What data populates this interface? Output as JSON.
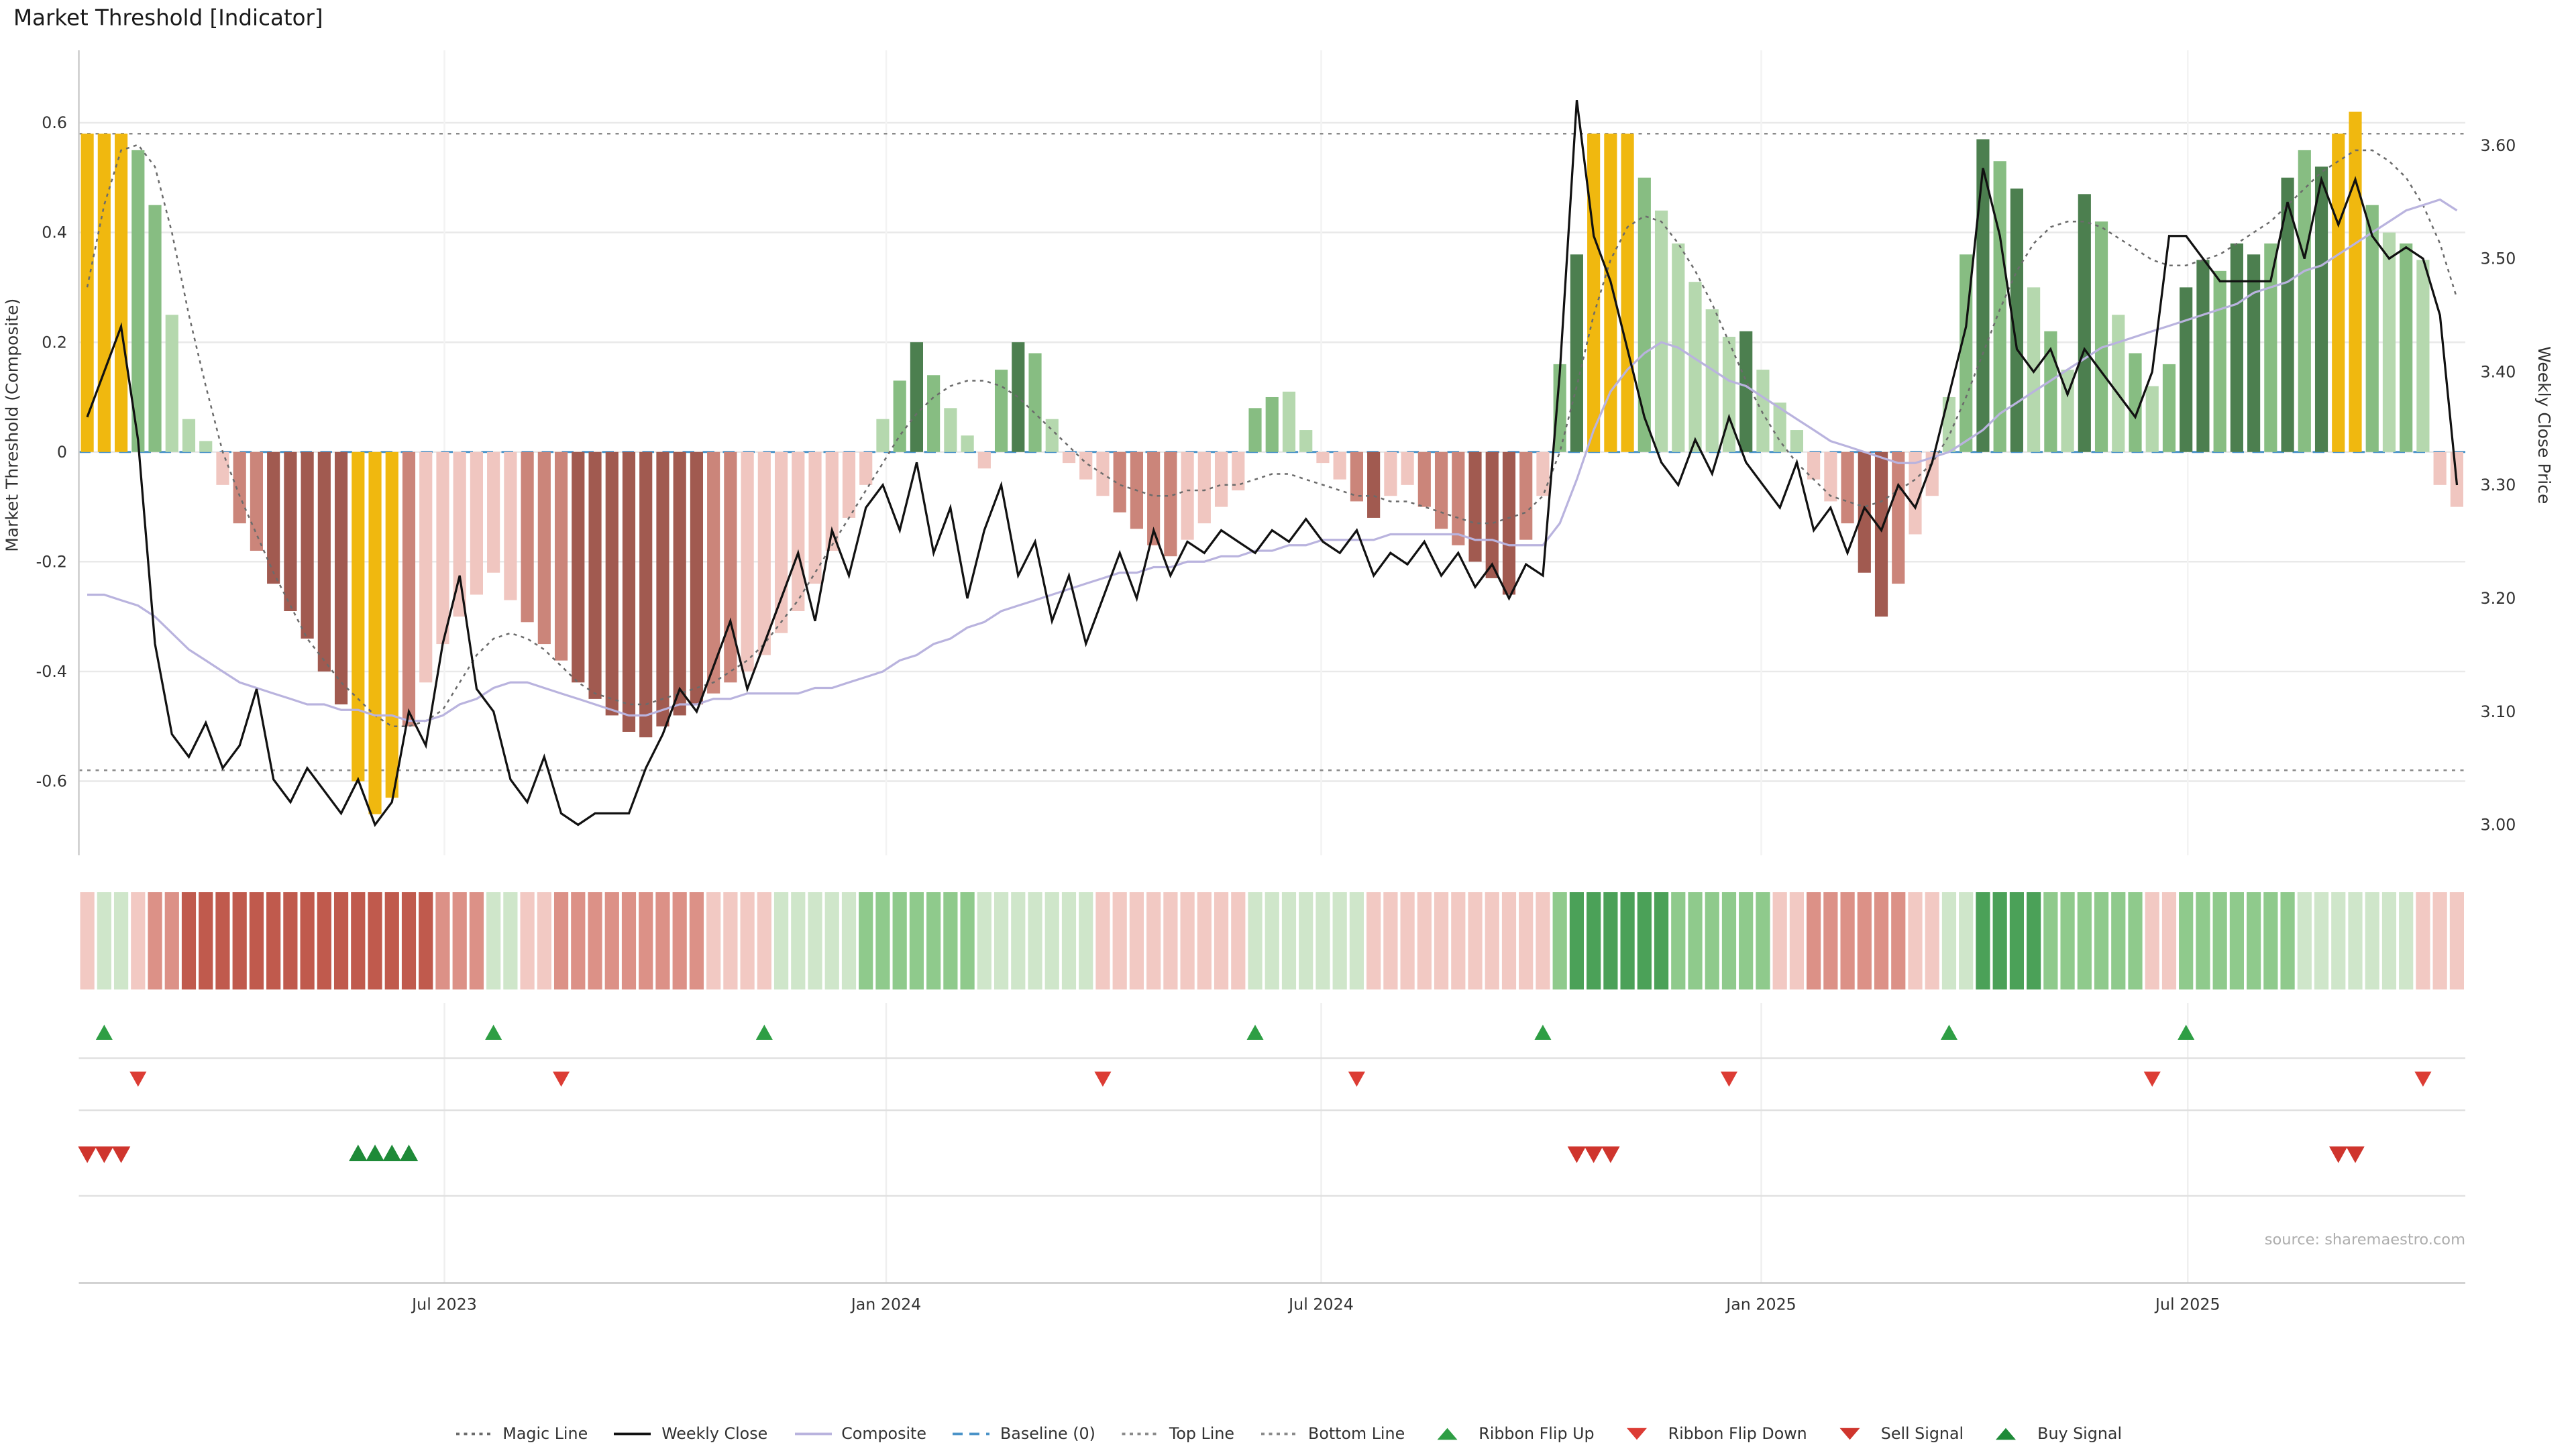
{
  "title": "Market Threshold [Indicator]",
  "source": "source: sharemaestro.com",
  "axes": {
    "left_label": "Market Threshold (Composite)",
    "right_label": "Weekly Close Price",
    "left_ticks": [
      {
        "label": "0.6",
        "value": 0.6
      },
      {
        "label": "0.4",
        "value": 0.4
      },
      {
        "label": "0.2",
        "value": 0.2
      },
      {
        "label": "0",
        "value": 0
      },
      {
        "label": "-0.2",
        "value": -0.2
      },
      {
        "label": "-0.4",
        "value": -0.4
      },
      {
        "label": "-0.6",
        "value": -0.6
      }
    ],
    "right_ticks": [
      {
        "label": "3.60",
        "value": 3.6
      },
      {
        "label": "3.50",
        "value": 3.5
      },
      {
        "label": "3.40",
        "value": 3.4
      },
      {
        "label": "3.30",
        "value": 3.3
      },
      {
        "label": "3.20",
        "value": 3.2
      },
      {
        "label": "3.10",
        "value": 3.1
      },
      {
        "label": "3.00",
        "value": 3.0
      }
    ],
    "x_ticks": [
      {
        "label": "Jul 2023",
        "week": 21.6
      },
      {
        "label": "Jan 2024",
        "week": 47.7
      },
      {
        "label": "Jul 2024",
        "week": 73.4
      },
      {
        "label": "Jan 2025",
        "week": 99.4
      },
      {
        "label": "Jul 2025",
        "week": 124.6
      }
    ]
  },
  "chart_data": {
    "type": "bar+line",
    "frequency": "weekly",
    "left_ylim": [
      -0.735,
      0.732
    ],
    "right_ylim": [
      2.973,
      3.684
    ],
    "baseline": 0,
    "top_line": 0.58,
    "bottom_line": -0.58,
    "grid": true,
    "threshold": {
      "name": "Market Threshold (Composite)",
      "values": [
        0.58,
        0.58,
        0.58,
        0.55,
        0.45,
        0.25,
        0.06,
        0.02,
        -0.06,
        -0.13,
        -0.18,
        -0.24,
        -0.29,
        -0.34,
        -0.4,
        -0.46,
        -0.6,
        -0.66,
        -0.63,
        -0.5,
        -0.42,
        -0.35,
        -0.3,
        -0.26,
        -0.22,
        -0.27,
        -0.31,
        -0.35,
        -0.38,
        -0.42,
        -0.45,
        -0.48,
        -0.51,
        -0.52,
        -0.5,
        -0.48,
        -0.46,
        -0.44,
        -0.42,
        -0.4,
        -0.37,
        -0.33,
        -0.29,
        -0.24,
        -0.18,
        -0.12,
        -0.06,
        0.06,
        0.13,
        0.2,
        0.14,
        0.08,
        0.03,
        -0.03,
        0.15,
        0.2,
        0.18,
        0.06,
        -0.02,
        -0.05,
        -0.08,
        -0.11,
        -0.14,
        -0.17,
        -0.19,
        -0.16,
        -0.13,
        -0.1,
        -0.07,
        0.08,
        0.1,
        0.11,
        0.04,
        -0.02,
        -0.05,
        -0.09,
        -0.12,
        -0.08,
        -0.06,
        -0.1,
        -0.14,
        -0.17,
        -0.2,
        -0.23,
        -0.26,
        -0.16,
        -0.08,
        0.16,
        0.36,
        0.58,
        0.58,
        0.58,
        0.5,
        0.44,
        0.38,
        0.31,
        0.26,
        0.21,
        0.22,
        0.15,
        0.09,
        0.04,
        -0.05,
        -0.09,
        -0.13,
        -0.22,
        -0.3,
        -0.24,
        -0.15,
        -0.08,
        0.1,
        0.36,
        0.57,
        0.53,
        0.48,
        0.3,
        0.22,
        0.15,
        0.47,
        0.42,
        0.25,
        0.18,
        0.12,
        0.16,
        0.3,
        0.35,
        0.33,
        0.38,
        0.36,
        0.38,
        0.5,
        0.55,
        0.52,
        0.58,
        0.62,
        0.45,
        0.4,
        0.38,
        0.35,
        -0.06,
        -0.1
      ],
      "tones": [
        "y",
        "y",
        "y",
        "g2",
        "g2",
        "g1",
        "g1",
        "g1",
        "r1",
        "r2",
        "r2",
        "r3",
        "r3",
        "r3",
        "r3",
        "r3",
        "y",
        "y",
        "y",
        "r2",
        "r1",
        "r1",
        "r1",
        "r1",
        "r1",
        "r1",
        "r2",
        "r2",
        "r2",
        "r3",
        "r3",
        "r3",
        "r3",
        "r3",
        "r3",
        "r3",
        "r3",
        "r2",
        "r2",
        "r1",
        "r1",
        "r1",
        "r1",
        "r1",
        "r1",
        "r1",
        "r1",
        "g1",
        "g2",
        "g3",
        "g2",
        "g1",
        "g1",
        "r1",
        "g2",
        "g3",
        "g2",
        "g1",
        "r1",
        "r1",
        "r1",
        "r2",
        "r2",
        "r2",
        "r2",
        "r1",
        "r1",
        "r1",
        "r1",
        "g2",
        "g2",
        "g1",
        "g1",
        "r1",
        "r1",
        "r2",
        "r3",
        "r1",
        "r1",
        "r2",
        "r2",
        "r2",
        "r3",
        "r3",
        "r3",
        "r2",
        "r1",
        "g2",
        "g3",
        "y",
        "y",
        "y",
        "g2",
        "g1",
        "g1",
        "g1",
        "g1",
        "g1",
        "g3",
        "g1",
        "g1",
        "g1",
        "r1",
        "r1",
        "r2",
        "r3",
        "r3",
        "r2",
        "r1",
        "r1",
        "g1",
        "g2",
        "g3",
        "g2",
        "g3",
        "g1",
        "g2",
        "g1",
        "g3",
        "g2",
        "g1",
        "g2",
        "g1",
        "g2",
        "g3",
        "g3",
        "g2",
        "g3",
        "g3",
        "g2",
        "g3",
        "g2",
        "g3",
        "y",
        "y",
        "g2",
        "g1",
        "g2",
        "g1",
        "r1",
        "r1"
      ]
    },
    "weekly_close": {
      "name": "Weekly Close",
      "values": [
        3.36,
        3.4,
        3.44,
        3.34,
        3.16,
        3.08,
        3.06,
        3.09,
        3.05,
        3.07,
        3.12,
        3.04,
        3.02,
        3.05,
        3.03,
        3.01,
        3.04,
        3.0,
        3.02,
        3.1,
        3.07,
        3.16,
        3.22,
        3.12,
        3.1,
        3.04,
        3.02,
        3.06,
        3.01,
        3.0,
        3.01,
        3.01,
        3.01,
        3.05,
        3.08,
        3.12,
        3.1,
        3.14,
        3.18,
        3.12,
        3.16,
        3.2,
        3.24,
        3.18,
        3.26,
        3.22,
        3.28,
        3.3,
        3.26,
        3.32,
        3.24,
        3.28,
        3.2,
        3.26,
        3.3,
        3.22,
        3.25,
        3.18,
        3.22,
        3.16,
        3.2,
        3.24,
        3.2,
        3.26,
        3.22,
        3.25,
        3.24,
        3.26,
        3.25,
        3.24,
        3.26,
        3.25,
        3.27,
        3.25,
        3.24,
        3.26,
        3.22,
        3.24,
        3.23,
        3.25,
        3.22,
        3.24,
        3.21,
        3.23,
        3.2,
        3.23,
        3.22,
        3.4,
        3.64,
        3.52,
        3.48,
        3.42,
        3.36,
        3.32,
        3.3,
        3.34,
        3.31,
        3.36,
        3.32,
        3.3,
        3.28,
        3.32,
        3.26,
        3.28,
        3.24,
        3.28,
        3.26,
        3.3,
        3.28,
        3.32,
        3.38,
        3.44,
        3.58,
        3.52,
        3.42,
        3.4,
        3.42,
        3.38,
        3.42,
        3.4,
        3.38,
        3.36,
        3.4,
        3.52,
        3.52,
        3.5,
        3.48,
        3.48,
        3.48,
        3.48,
        3.55,
        3.5,
        3.57,
        3.53,
        3.57,
        3.52,
        3.5,
        3.51,
        3.5,
        3.45,
        3.3
      ]
    },
    "composite": {
      "name": "Composite",
      "values": [
        -0.26,
        -0.26,
        -0.27,
        -0.28,
        -0.3,
        -0.33,
        -0.36,
        -0.38,
        -0.4,
        -0.42,
        -0.43,
        -0.44,
        -0.45,
        -0.46,
        -0.46,
        -0.47,
        -0.47,
        -0.48,
        -0.48,
        -0.49,
        -0.49,
        -0.48,
        -0.46,
        -0.45,
        -0.43,
        -0.42,
        -0.42,
        -0.43,
        -0.44,
        -0.45,
        -0.46,
        -0.47,
        -0.48,
        -0.48,
        -0.47,
        -0.46,
        -0.46,
        -0.45,
        -0.45,
        -0.44,
        -0.44,
        -0.44,
        -0.44,
        -0.43,
        -0.43,
        -0.42,
        -0.41,
        -0.4,
        -0.38,
        -0.37,
        -0.35,
        -0.34,
        -0.32,
        -0.31,
        -0.29,
        -0.28,
        -0.27,
        -0.26,
        -0.25,
        -0.24,
        -0.23,
        -0.22,
        -0.22,
        -0.21,
        -0.21,
        -0.2,
        -0.2,
        -0.19,
        -0.19,
        -0.18,
        -0.18,
        -0.17,
        -0.17,
        -0.16,
        -0.16,
        -0.16,
        -0.16,
        -0.15,
        -0.15,
        -0.15,
        -0.15,
        -0.15,
        -0.16,
        -0.16,
        -0.17,
        -0.17,
        -0.17,
        -0.13,
        -0.05,
        0.04,
        0.11,
        0.15,
        0.18,
        0.2,
        0.19,
        0.17,
        0.15,
        0.13,
        0.12,
        0.1,
        0.08,
        0.06,
        0.04,
        0.02,
        0.01,
        0.0,
        -0.01,
        -0.02,
        -0.02,
        -0.01,
        0.0,
        0.02,
        0.04,
        0.07,
        0.09,
        0.11,
        0.13,
        0.15,
        0.17,
        0.19,
        0.2,
        0.21,
        0.22,
        0.23,
        0.24,
        0.25,
        0.26,
        0.27,
        0.29,
        0.3,
        0.31,
        0.33,
        0.34,
        0.36,
        0.38,
        0.4,
        0.42,
        0.44,
        0.45,
        0.46,
        0.44
      ]
    },
    "magic_line": {
      "name": "Magic Line",
      "values": [
        0.3,
        0.45,
        0.55,
        0.56,
        0.52,
        0.4,
        0.25,
        0.12,
        0.0,
        -0.08,
        -0.15,
        -0.22,
        -0.28,
        -0.34,
        -0.38,
        -0.42,
        -0.45,
        -0.48,
        -0.5,
        -0.5,
        -0.49,
        -0.47,
        -0.42,
        -0.37,
        -0.34,
        -0.33,
        -0.34,
        -0.36,
        -0.39,
        -0.42,
        -0.44,
        -0.45,
        -0.46,
        -0.46,
        -0.45,
        -0.44,
        -0.43,
        -0.42,
        -0.4,
        -0.38,
        -0.35,
        -0.31,
        -0.27,
        -0.22,
        -0.17,
        -0.12,
        -0.07,
        -0.02,
        0.03,
        0.07,
        0.1,
        0.12,
        0.13,
        0.13,
        0.12,
        0.1,
        0.07,
        0.04,
        0.01,
        -0.02,
        -0.04,
        -0.06,
        -0.07,
        -0.08,
        -0.08,
        -0.07,
        -0.07,
        -0.06,
        -0.06,
        -0.05,
        -0.04,
        -0.04,
        -0.05,
        -0.06,
        -0.07,
        -0.08,
        -0.08,
        -0.09,
        -0.09,
        -0.1,
        -0.11,
        -0.12,
        -0.13,
        -0.13,
        -0.12,
        -0.11,
        -0.08,
        0.0,
        0.12,
        0.25,
        0.35,
        0.41,
        0.43,
        0.42,
        0.38,
        0.33,
        0.27,
        0.2,
        0.13,
        0.07,
        0.02,
        -0.02,
        -0.05,
        -0.08,
        -0.09,
        -0.1,
        -0.09,
        -0.07,
        -0.05,
        -0.02,
        0.03,
        0.1,
        0.18,
        0.26,
        0.33,
        0.38,
        0.41,
        0.42,
        0.42,
        0.41,
        0.39,
        0.37,
        0.35,
        0.34,
        0.34,
        0.35,
        0.36,
        0.38,
        0.4,
        0.42,
        0.45,
        0.48,
        0.51,
        0.53,
        0.55,
        0.55,
        0.53,
        0.5,
        0.45,
        0.38,
        0.28
      ]
    },
    "ribbon": {
      "name": "Trend Ribbon",
      "tones": [
        "r1",
        "g1",
        "g1",
        "r1",
        "r2",
        "r2",
        "r3",
        "r3",
        "r3",
        "r3",
        "r3",
        "r3",
        "r3",
        "r3",
        "r3",
        "r3",
        "r3",
        "r3",
        "r3",
        "r3",
        "r3",
        "r2",
        "r2",
        "r2",
        "g1",
        "g1",
        "r1",
        "r1",
        "r2",
        "r2",
        "r2",
        "r2",
        "r2",
        "r2",
        "r2",
        "r2",
        "r2",
        "r1",
        "r1",
        "r1",
        "r1",
        "g1",
        "g1",
        "g1",
        "g1",
        "g1",
        "g2",
        "g2",
        "g2",
        "g2",
        "g2",
        "g2",
        "g2",
        "g1",
        "g1",
        "g1",
        "g1",
        "g1",
        "g1",
        "g1",
        "r1",
        "r1",
        "r1",
        "r1",
        "r1",
        "r1",
        "r1",
        "r1",
        "r1",
        "g1",
        "g1",
        "g1",
        "g1",
        "g1",
        "g1",
        "g1",
        "r1",
        "r1",
        "r1",
        "r1",
        "r1",
        "r1",
        "r1",
        "r1",
        "r1",
        "r1",
        "r1",
        "g2",
        "g3",
        "g3",
        "g3",
        "g3",
        "g3",
        "g3",
        "g2",
        "g2",
        "g2",
        "g2",
        "g2",
        "g2",
        "r1",
        "r1",
        "r2",
        "r2",
        "r2",
        "r2",
        "r2",
        "r2",
        "r1",
        "r1",
        "g1",
        "g1",
        "g3",
        "g3",
        "g3",
        "g3",
        "g2",
        "g2",
        "g2",
        "g2",
        "g2",
        "g2",
        "r1",
        "r1",
        "g2",
        "g2",
        "g2",
        "g2",
        "g2",
        "g2",
        "g2",
        "g1",
        "g1",
        "g1",
        "g1",
        "g1",
        "g1",
        "g1",
        "r1",
        "r1",
        "r1"
      ]
    }
  },
  "signals": {
    "ribbon_flip_up": {
      "marker": "triangle-up",
      "color": "#2e9e44",
      "weeks": [
        1,
        24,
        40,
        69,
        86,
        110,
        124
      ]
    },
    "ribbon_flip_down": {
      "marker": "triangle-down",
      "color": "#dc3c34",
      "weeks": [
        3,
        28,
        60,
        75,
        97,
        122,
        138
      ]
    },
    "sell": {
      "marker": "triangle-down",
      "color": "#cf352d",
      "weeks": [
        0,
        1,
        2,
        88,
        89,
        90,
        133,
        134
      ]
    },
    "buy": {
      "marker": "triangle-up",
      "color": "#1e8a38",
      "weeks": [
        16,
        17,
        18,
        19
      ]
    }
  },
  "colors": {
    "bar": {
      "y": "#f0b80f",
      "g1": "#b5d8ae",
      "g2": "#87bd82",
      "g3": "#4c7f4f",
      "r1": "#f0c6c0",
      "r2": "#cb857a",
      "r3": "#a15a50"
    },
    "ribbon": {
      "g1": "#cfe6ca",
      "g2": "#8fca8c",
      "g3": "#4ba158",
      "r1": "#f2c9c3",
      "r2": "#dc9187",
      "r3": "#c05a4d"
    },
    "close": "#111111",
    "composite": "#b9b3de",
    "magic": "#6b6b6b",
    "baseline": "#4a93c8",
    "band_line": "#8a8a8a",
    "grid": "#e9e9e9",
    "vgrid": "#f3f3f3",
    "spine": "#cccccc",
    "separator": "#e0e0e0",
    "panel_axis": "#c8c8c8",
    "tick_text": "#333333"
  },
  "legend": {
    "items": [
      {
        "label": "Magic Line",
        "swatch": "dotted",
        "color": "#6b6b6b"
      },
      {
        "label": "Weekly Close",
        "swatch": "solid",
        "color": "#111111"
      },
      {
        "label": "Composite",
        "swatch": "solid",
        "color": "#b9b3de"
      },
      {
        "label": "Baseline (0)",
        "swatch": "dashed",
        "color": "#4a93c8"
      },
      {
        "label": "Top Line",
        "swatch": "dotted",
        "color": "#8a8a8a"
      },
      {
        "label": "Bottom Line",
        "swatch": "dotted",
        "color": "#8a8a8a"
      },
      {
        "label": "Ribbon Flip Up",
        "swatch": "tri-up",
        "color": "#2e9e44"
      },
      {
        "label": "Ribbon Flip Down",
        "swatch": "tri-down",
        "color": "#dc3c34"
      },
      {
        "label": "Sell Signal",
        "swatch": "tri-down",
        "color": "#cf352d"
      },
      {
        "label": "Buy Signal",
        "swatch": "tri-up",
        "color": "#1e8a38"
      }
    ]
  }
}
